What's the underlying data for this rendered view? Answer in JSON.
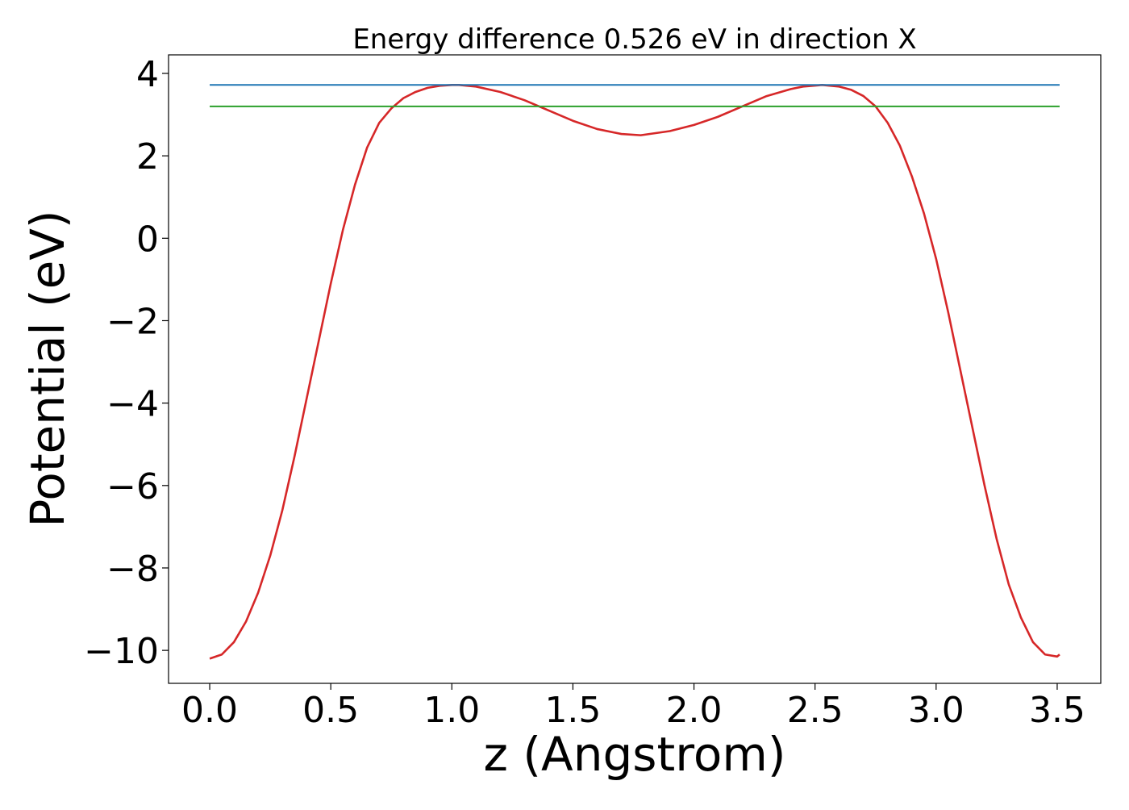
{
  "chart_data": {
    "type": "line",
    "title": "Energy difference 0.526 eV in direction X",
    "xlabel": "z (Angstrom)",
    "ylabel": "Potential (eV)",
    "xlim": [
      -0.17,
      3.68
    ],
    "ylim": [
      -10.8,
      4.45
    ],
    "xticks": [
      0.0,
      0.5,
      1.0,
      1.5,
      2.0,
      2.5,
      3.0,
      3.5
    ],
    "xtick_labels": [
      "0.0",
      "0.5",
      "1.0",
      "1.5",
      "2.0",
      "2.5",
      "3.0",
      "3.5"
    ],
    "yticks": [
      -10,
      -8,
      -6,
      -4,
      -2,
      0,
      2,
      4
    ],
    "ytick_labels": [
      "−10",
      "−8",
      "−6",
      "−4",
      "−2",
      "0",
      "2",
      "4"
    ],
    "grid": false,
    "series": [
      {
        "color": "#d62728",
        "x": [
          0.0,
          0.05,
          0.1,
          0.15,
          0.2,
          0.25,
          0.3,
          0.35,
          0.4,
          0.45,
          0.5,
          0.55,
          0.6,
          0.65,
          0.7,
          0.75,
          0.8,
          0.85,
          0.9,
          0.95,
          1.0,
          1.03,
          1.1,
          1.2,
          1.3,
          1.4,
          1.5,
          1.6,
          1.7,
          1.78,
          1.9,
          2.0,
          2.1,
          2.2,
          2.3,
          2.4,
          2.45,
          2.53,
          2.6,
          2.65,
          2.7,
          2.75,
          2.8,
          2.85,
          2.9,
          2.95,
          3.0,
          3.05,
          3.1,
          3.15,
          3.2,
          3.25,
          3.3,
          3.35,
          3.4,
          3.45,
          3.5,
          3.51
        ],
        "y": [
          -10.2,
          -10.1,
          -9.8,
          -9.3,
          -8.6,
          -7.7,
          -6.6,
          -5.3,
          -3.9,
          -2.5,
          -1.1,
          0.2,
          1.3,
          2.2,
          2.8,
          3.15,
          3.4,
          3.55,
          3.65,
          3.7,
          3.72,
          3.72,
          3.68,
          3.55,
          3.35,
          3.1,
          2.85,
          2.65,
          2.53,
          2.5,
          2.6,
          2.75,
          2.95,
          3.2,
          3.45,
          3.62,
          3.68,
          3.72,
          3.68,
          3.6,
          3.45,
          3.2,
          2.8,
          2.25,
          1.5,
          0.6,
          -0.5,
          -1.8,
          -3.2,
          -4.6,
          -6.0,
          -7.3,
          -8.4,
          -9.2,
          -9.8,
          -10.1,
          -10.15,
          -10.1
        ]
      },
      {
        "color": "#1f77b4",
        "x": [
          0.0,
          3.51
        ],
        "y": [
          3.72,
          3.72
        ]
      },
      {
        "color": "#2ca02c",
        "x": [
          0.0,
          3.51
        ],
        "y": [
          3.2,
          3.2
        ]
      }
    ]
  }
}
